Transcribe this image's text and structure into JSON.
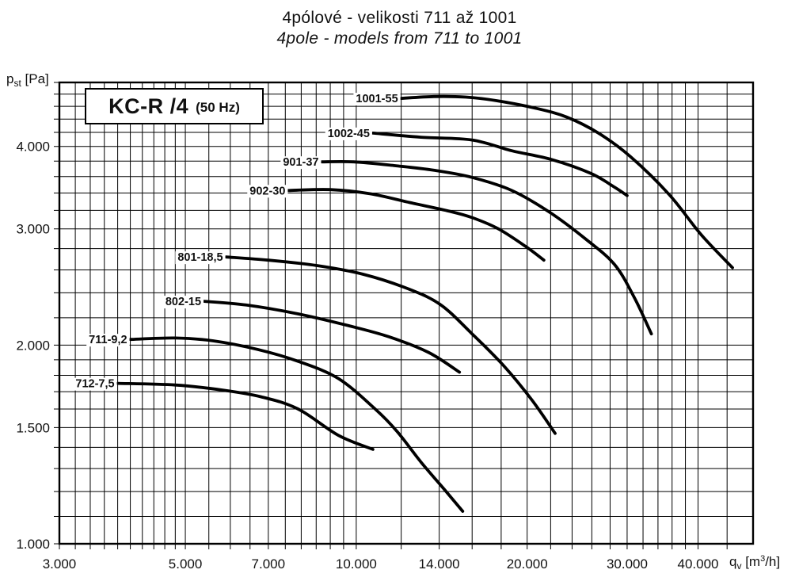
{
  "title": {
    "line1": "4pólové - velikosti 711 až 1001",
    "line2": "4pole - models from 711 to 1001"
  },
  "model_box": {
    "name": "KC-R /4",
    "frequency": "(50 Hz)"
  },
  "y_axis": {
    "symbol": "p",
    "subscript": "st",
    "unit": " [Pa]"
  },
  "x_axis": {
    "symbol": "q",
    "subscript": "v",
    "unit_open": " [m",
    "unit_sup": "3",
    "unit_close": "/h]"
  },
  "chart_data": {
    "type": "line",
    "title": "KC-R /4 (50 Hz)",
    "subtitle": "4pólové - velikosti 711 až 1001 / 4pole - models from 711 to 1001",
    "xlabel": "qv [m3/h]",
    "ylabel": "pst [Pa]",
    "x_scale": "log",
    "y_scale": "log",
    "x_range": [
      3000,
      50000
    ],
    "y_range": [
      1000,
      5000
    ],
    "grid": "on",
    "legend_position": "curve-start-labels",
    "grid_color": "#000000",
    "curve_color": "#000000",
    "background": "#ffffff",
    "x_ticks": [
      {
        "value": 3000,
        "label": "3.000"
      },
      {
        "value": 5000,
        "label": "5.000"
      },
      {
        "value": 7000,
        "label": "7.000"
      },
      {
        "value": 10000,
        "label": "10.000"
      },
      {
        "value": 14000,
        "label": "14.000"
      },
      {
        "value": 20000,
        "label": "20.000"
      },
      {
        "value": 30000,
        "label": "30.000"
      },
      {
        "value": 40000,
        "label": "40.000"
      }
    ],
    "y_ticks": [
      {
        "value": 1000,
        "label": "1.000"
      },
      {
        "value": 1500,
        "label": "1.500"
      },
      {
        "value": 2000,
        "label": "2.000"
      },
      {
        "value": 3000,
        "label": "3.000"
      },
      {
        "value": 4000,
        "label": "4.000"
      }
    ],
    "x_gridlines": [
      3000,
      3200,
      3400,
      3600,
      3800,
      4000,
      4200,
      4400,
      4600,
      4800,
      5000,
      5500,
      6000,
      6500,
      7000,
      7500,
      8000,
      8500,
      9000,
      9500,
      10000,
      12000,
      14000,
      16000,
      18000,
      20000,
      22000,
      24000,
      26000,
      28000,
      30000,
      32000,
      34000,
      36000,
      38000,
      40000,
      45000
    ],
    "y_gridlines": [
      1000,
      1100,
      1200,
      1300,
      1400,
      1500,
      1600,
      1700,
      1800,
      1900,
      2000,
      2200,
      2400,
      2600,
      2800,
      3000,
      3200,
      3400,
      3600,
      3800,
      4000,
      4200,
      4400,
      4600,
      4800,
      5000
    ],
    "series": [
      {
        "name": "1001-55",
        "points": [
          [
            12000,
            4730
          ],
          [
            13700,
            4760
          ],
          [
            15600,
            4750
          ],
          [
            17700,
            4690
          ],
          [
            20700,
            4570
          ],
          [
            23500,
            4430
          ],
          [
            26700,
            4190
          ],
          [
            30400,
            3860
          ],
          [
            35600,
            3380
          ],
          [
            40500,
            2940
          ],
          [
            46000,
            2620
          ]
        ]
      },
      {
        "name": "1002-45",
        "points": [
          [
            10700,
            4190
          ],
          [
            13000,
            4130
          ],
          [
            16000,
            4090
          ],
          [
            18800,
            3940
          ],
          [
            22100,
            3820
          ],
          [
            25900,
            3640
          ],
          [
            28500,
            3470
          ],
          [
            30000,
            3370
          ]
        ]
      },
      {
        "name": "901-37",
        "points": [
          [
            8700,
            3790
          ],
          [
            9900,
            3790
          ],
          [
            11700,
            3740
          ],
          [
            13700,
            3680
          ],
          [
            16000,
            3590
          ],
          [
            18800,
            3430
          ],
          [
            21900,
            3180
          ],
          [
            25300,
            2900
          ],
          [
            28500,
            2650
          ],
          [
            30900,
            2360
          ],
          [
            33100,
            2080
          ]
        ]
      },
      {
        "name": "902-30",
        "points": [
          [
            7600,
            3430
          ],
          [
            9000,
            3440
          ],
          [
            10600,
            3390
          ],
          [
            12400,
            3290
          ],
          [
            14600,
            3190
          ],
          [
            16000,
            3120
          ],
          [
            17800,
            3000
          ],
          [
            19900,
            2820
          ],
          [
            21400,
            2690
          ]
        ]
      },
      {
        "name": "801-18,5",
        "points": [
          [
            5900,
            2720
          ],
          [
            7000,
            2690
          ],
          [
            8500,
            2640
          ],
          [
            10300,
            2560
          ],
          [
            12400,
            2430
          ],
          [
            14100,
            2300
          ],
          [
            16000,
            2080
          ],
          [
            18200,
            1860
          ],
          [
            20400,
            1650
          ],
          [
            22400,
            1470
          ]
        ]
      },
      {
        "name": "802-15",
        "points": [
          [
            5400,
            2330
          ],
          [
            6400,
            2300
          ],
          [
            7900,
            2230
          ],
          [
            9700,
            2140
          ],
          [
            11400,
            2060
          ],
          [
            13400,
            1950
          ],
          [
            15200,
            1820
          ]
        ]
      },
      {
        "name": "711-9,2",
        "points": [
          [
            4000,
            2040
          ],
          [
            4800,
            2050
          ],
          [
            5600,
            2030
          ],
          [
            6700,
            1970
          ],
          [
            7900,
            1890
          ],
          [
            9300,
            1780
          ],
          [
            10800,
            1600
          ],
          [
            11800,
            1480
          ],
          [
            13000,
            1330
          ],
          [
            14400,
            1200
          ],
          [
            15400,
            1120
          ]
        ]
      },
      {
        "name": "712-7,5",
        "points": [
          [
            3800,
            1750
          ],
          [
            4800,
            1740
          ],
          [
            5800,
            1710
          ],
          [
            6800,
            1670
          ],
          [
            7900,
            1600
          ],
          [
            9300,
            1460
          ],
          [
            10700,
            1390
          ]
        ]
      }
    ]
  }
}
